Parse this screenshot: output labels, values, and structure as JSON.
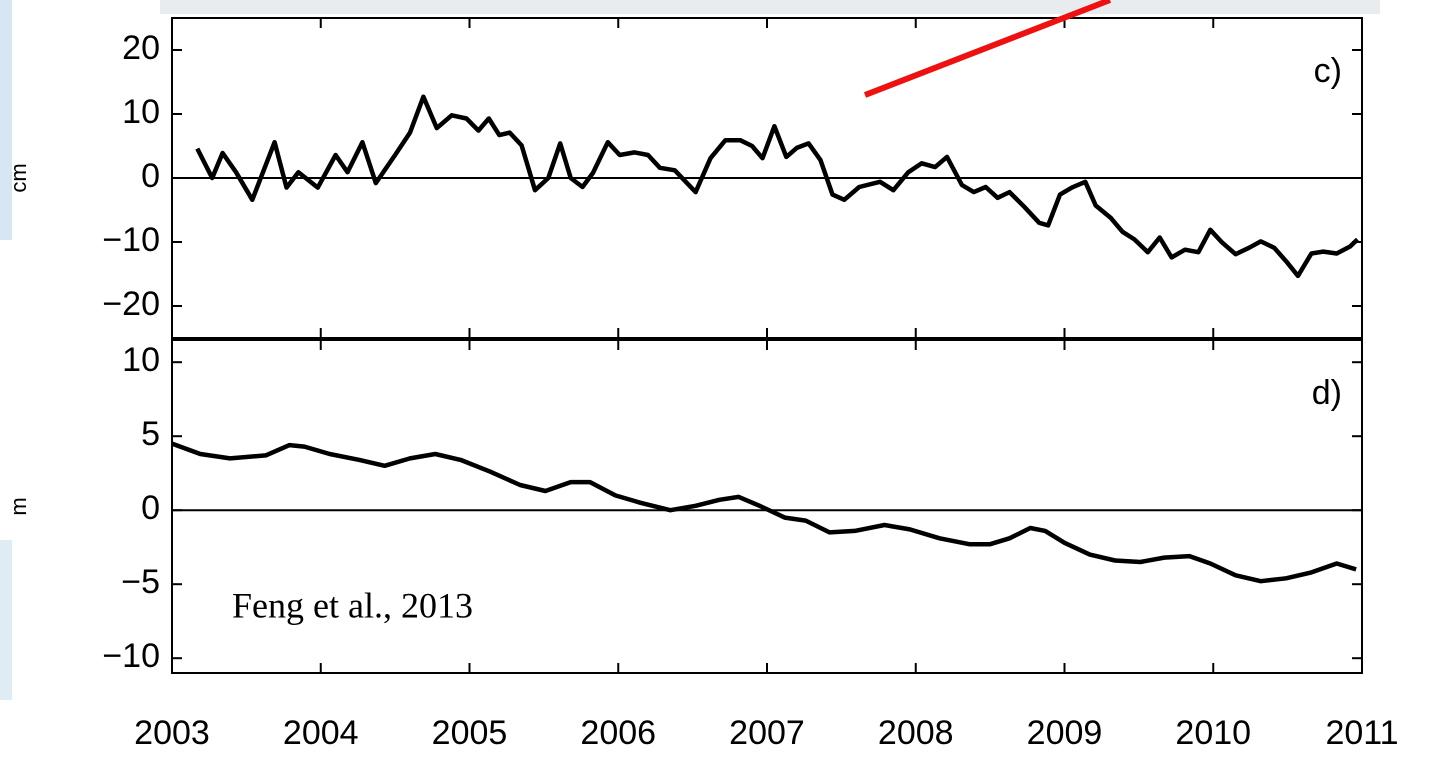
{
  "chart_data": [
    {
      "type": "line",
      "panel_label": "c)",
      "ylabel": "cm",
      "color": "#000000",
      "xlim": [
        2003,
        2011
      ],
      "ylim": [
        -25,
        25
      ],
      "yticks": [
        20,
        10,
        0,
        {
          "value": -10,
          "label": "−10"
        },
        {
          "value": -20,
          "label": "−20"
        }
      ],
      "x": [
        2003.17,
        2003.27,
        2003.34,
        2003.43,
        2003.54,
        2003.69,
        2003.77,
        2003.85,
        2003.98,
        2004.1,
        2004.18,
        2004.28,
        2004.37,
        2004.5,
        2004.6,
        2004.69,
        2004.78,
        2004.88,
        2004.98,
        2005.06,
        2005.13,
        2005.2,
        2005.27,
        2005.35,
        2005.44,
        2005.53,
        2005.61,
        2005.68,
        2005.76,
        2005.83,
        2005.93,
        2006.01,
        2006.11,
        2006.2,
        2006.28,
        2006.38,
        2006.52,
        2006.62,
        2006.72,
        2006.82,
        2006.9,
        2006.97,
        2007.05,
        2007.13,
        2007.2,
        2007.28,
        2007.36,
        2007.44,
        2007.52,
        2007.62,
        2007.76,
        2007.85,
        2007.95,
        2008.04,
        2008.13,
        2008.21,
        2008.31,
        2008.39,
        2008.47,
        2008.55,
        2008.63,
        2008.73,
        2008.83,
        2008.89,
        2008.97,
        2009.05,
        2009.14,
        2009.21,
        2009.31,
        2009.39,
        2009.47,
        2009.56,
        2009.64,
        2009.72,
        2009.81,
        2009.9,
        2009.98,
        2010.06,
        2010.15,
        2010.24,
        2010.32,
        2010.41,
        2010.49,
        2010.57,
        2010.66,
        2010.74,
        2010.83,
        2010.92,
        2010.97
      ],
      "values": [
        4.6,
        0,
        3.9,
        0.9,
        -3.4,
        5.6,
        -1.5,
        0.9,
        -1.5,
        3.6,
        0.9,
        5.6,
        -0.8,
        3.6,
        7.1,
        12.7,
        7.8,
        9.8,
        9.3,
        7.4,
        9.3,
        6.7,
        7.1,
        5.1,
        -1.9,
        0,
        5.4,
        0,
        -1.4,
        0.8,
        5.6,
        3.6,
        4.0,
        3.6,
        1.6,
        1.2,
        -2.2,
        3.1,
        5.9,
        5.9,
        5.0,
        3.1,
        8.1,
        3.3,
        4.7,
        5.4,
        2.8,
        -2.6,
        -3.4,
        -1.4,
        -0.6,
        -1.9,
        0.9,
        2.3,
        1.7,
        3.3,
        -1.1,
        -2.2,
        -1.4,
        -3.1,
        -2.2,
        -4.5,
        -7.0,
        -7.4,
        -2.6,
        -1.5,
        -0.6,
        -4.3,
        -6.2,
        -8.4,
        -9.6,
        -11.6,
        -9.3,
        -12.4,
        -11.2,
        -11.6,
        -8.1,
        -10.1,
        -11.9,
        -10.9,
        -9.9,
        -10.9,
        -13.0,
        -15.3,
        -11.8,
        -11.5,
        -11.8,
        -10.7,
        -9.6
      ]
    },
    {
      "type": "line",
      "panel_label": "d)",
      "ylabel": "m",
      "annotation": "Feng et al., 2013",
      "color": "#000000",
      "xlim": [
        2003,
        2011
      ],
      "ylim": [
        -11,
        11.5
      ],
      "xticks": [
        2003,
        2004,
        2005,
        2006,
        2007,
        2008,
        2009,
        2010,
        2011
      ],
      "yticks": [
        10,
        5,
        0,
        {
          "value": -5,
          "label": "−5"
        },
        {
          "value": -10,
          "label": "−10"
        }
      ],
      "x": [
        2003.0,
        2003.19,
        2003.39,
        2003.63,
        2003.79,
        2003.89,
        2004.06,
        2004.26,
        2004.43,
        2004.6,
        2004.77,
        2004.94,
        2005.14,
        2005.34,
        2005.51,
        2005.68,
        2005.81,
        2005.98,
        2006.15,
        2006.35,
        2006.52,
        2006.68,
        2006.81,
        2006.95,
        2007.12,
        2007.26,
        2007.42,
        2007.59,
        2007.79,
        2007.96,
        2008.16,
        2008.36,
        2008.5,
        2008.63,
        2008.77,
        2008.87,
        2009.0,
        2009.17,
        2009.34,
        2009.51,
        2009.67,
        2009.84,
        2009.98,
        2010.15,
        2010.32,
        2010.49,
        2010.66,
        2010.83,
        2010.96
      ],
      "values": [
        4.5,
        3.8,
        3.5,
        3.7,
        4.4,
        4.3,
        3.8,
        3.4,
        3.0,
        3.5,
        3.8,
        3.4,
        2.6,
        1.7,
        1.3,
        1.9,
        1.9,
        1.0,
        0.5,
        0,
        0.3,
        0.7,
        0.9,
        0.3,
        -0.5,
        -0.7,
        -1.5,
        -1.4,
        -1.0,
        -1.3,
        -1.9,
        -2.3,
        -2.3,
        -1.9,
        -1.2,
        -1.4,
        -2.2,
        -3.0,
        -3.4,
        -3.5,
        -3.2,
        -3.1,
        -3.6,
        -4.4,
        -4.8,
        -4.6,
        -4.2,
        -3.6,
        -4.0
      ]
    }
  ]
}
